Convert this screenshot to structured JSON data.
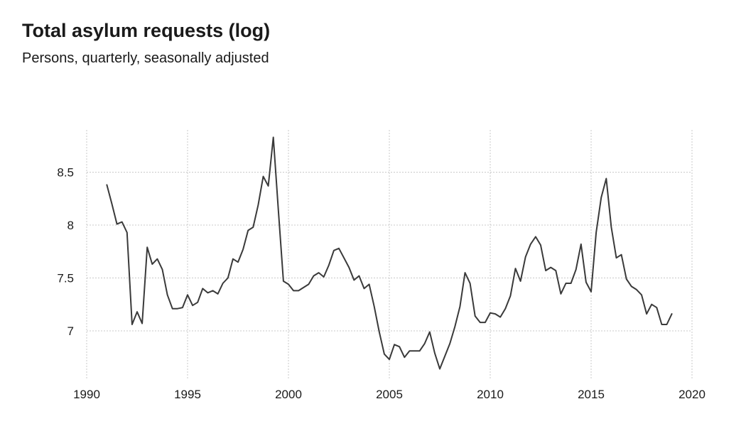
{
  "title": "Total asylum requests (log)",
  "subtitle": "Persons, quarterly, seasonally adjusted",
  "colors": {
    "line": "#3a3a3a",
    "grid": "#c8c8c8",
    "text": "#1a1a1a",
    "background": "#ffffff"
  },
  "chart_data": {
    "type": "line",
    "title": "Total asylum requests (log)",
    "subtitle": "Persons, quarterly, seasonally adjusted",
    "xlabel": "",
    "ylabel": "",
    "xlim": [
      1990,
      2020
    ],
    "ylim": [
      6.55,
      8.9
    ],
    "x_ticks": [
      1990,
      1995,
      2000,
      2005,
      2010,
      2015,
      2020
    ],
    "y_ticks": [
      7,
      7.5,
      8,
      8.5
    ],
    "x_tick_labels": [
      "1990",
      "1995",
      "2000",
      "2005",
      "2010",
      "2015",
      "2020"
    ],
    "y_tick_labels": [
      "7",
      "7.5",
      "8",
      "8.5"
    ],
    "grid": true,
    "legend": "none",
    "series": [
      {
        "x": [
          1991.0,
          1991.25,
          1991.5,
          1991.75,
          1992.0,
          1992.25,
          1992.5,
          1992.75,
          1993.0,
          1993.25,
          1993.5,
          1993.75,
          1994.0,
          1994.25,
          1994.5,
          1994.75,
          1995.0,
          1995.25,
          1995.5,
          1995.75,
          1996.0,
          1996.25,
          1996.5,
          1996.75,
          1997.0,
          1997.25,
          1997.5,
          1997.75,
          1998.0,
          1998.25,
          1998.5,
          1998.75,
          1999.0,
          1999.25,
          1999.5,
          1999.75,
          2000.0,
          2000.25,
          2000.5,
          2000.75,
          2001.0,
          2001.25,
          2001.5,
          2001.75,
          2002.0,
          2002.25,
          2002.5,
          2002.75,
          2003.0,
          2003.25,
          2003.5,
          2003.75,
          2004.0,
          2004.25,
          2004.5,
          2004.75,
          2005.0,
          2005.25,
          2005.5,
          2005.75,
          2006.0,
          2006.25,
          2006.5,
          2006.75,
          2007.0,
          2007.25,
          2007.5,
          2007.75,
          2008.0,
          2008.25,
          2008.5,
          2008.75,
          2009.0,
          2009.25,
          2009.5,
          2009.75,
          2010.0,
          2010.25,
          2010.5,
          2010.75,
          2011.0,
          2011.25,
          2011.5,
          2011.75,
          2012.0,
          2012.25,
          2012.5,
          2012.75,
          2013.0,
          2013.25,
          2013.5,
          2013.75,
          2014.0,
          2014.25,
          2014.5,
          2014.75,
          2015.0,
          2015.25,
          2015.5,
          2015.75,
          2016.0,
          2016.25,
          2016.5,
          2016.75,
          2017.0,
          2017.25,
          2017.5,
          2017.75,
          2018.0,
          2018.25,
          2018.5,
          2018.75,
          2019.0
        ],
        "y": [
          8.38,
          8.2,
          8.01,
          8.03,
          7.93,
          7.06,
          7.18,
          7.07,
          7.79,
          7.63,
          7.68,
          7.58,
          7.34,
          7.21,
          7.21,
          7.22,
          7.34,
          7.24,
          7.27,
          7.4,
          7.36,
          7.38,
          7.35,
          7.45,
          7.5,
          7.68,
          7.65,
          7.77,
          7.95,
          7.98,
          8.19,
          8.46,
          8.37,
          8.83,
          8.14,
          7.47,
          7.44,
          7.38,
          7.38,
          7.41,
          7.44,
          7.52,
          7.55,
          7.51,
          7.62,
          7.76,
          7.78,
          7.69,
          7.6,
          7.48,
          7.52,
          7.4,
          7.44,
          7.23,
          6.99,
          6.78,
          6.73,
          6.87,
          6.85,
          6.75,
          6.81,
          6.81,
          6.81,
          6.88,
          6.99,
          6.79,
          6.64,
          6.76,
          6.88,
          7.04,
          7.23,
          7.55,
          7.45,
          7.14,
          7.08,
          7.08,
          7.17,
          7.16,
          7.13,
          7.21,
          7.33,
          7.59,
          7.47,
          7.7,
          7.82,
          7.89,
          7.81,
          7.57,
          7.6,
          7.57,
          7.35,
          7.45,
          7.45,
          7.58,
          7.82,
          7.46,
          7.37,
          7.93,
          8.26,
          8.44,
          7.98,
          7.69,
          7.72,
          7.49,
          7.42,
          7.39,
          7.34,
          7.16,
          7.25,
          7.22,
          7.06,
          7.06,
          7.16
        ]
      }
    ]
  }
}
